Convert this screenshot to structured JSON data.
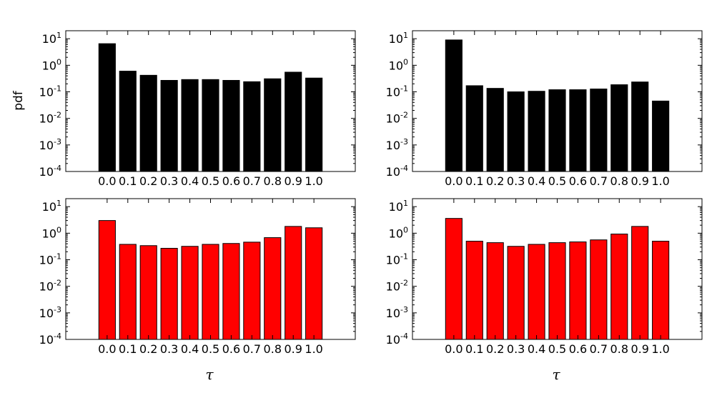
{
  "figure": {
    "ylabel": "pdf",
    "xlabel_symbol": "τ"
  },
  "chart_data": [
    {
      "type": "bar",
      "panel": "top-left",
      "yscale": "log",
      "ylim": [
        0.0001,
        20
      ],
      "color": "#000000",
      "categories": [
        "0.0",
        "0.1",
        "0.2",
        "0.3",
        "0.4",
        "0.5",
        "0.6",
        "0.7",
        "0.8",
        "0.9",
        "1.0"
      ],
      "values": [
        6.5,
        0.6,
        0.42,
        0.27,
        0.29,
        0.29,
        0.27,
        0.24,
        0.31,
        0.55,
        0.33
      ],
      "yticks": [
        {
          "base": "10",
          "exp": "1"
        },
        {
          "base": "10",
          "exp": "0"
        },
        {
          "base": "10",
          "exp": "-1"
        },
        {
          "base": "10",
          "exp": "-2"
        },
        {
          "base": "10",
          "exp": "-3"
        },
        {
          "base": "10",
          "exp": "-4"
        }
      ],
      "ylabel": "pdf",
      "xlabel": ""
    },
    {
      "type": "bar",
      "panel": "top-right",
      "yscale": "log",
      "ylim": [
        0.0001,
        20
      ],
      "color": "#000000",
      "categories": [
        "0.0",
        "0.1",
        "0.2",
        "0.3",
        "0.4",
        "0.5",
        "0.6",
        "0.7",
        "0.8",
        "0.9",
        "1.0"
      ],
      "values": [
        9.0,
        0.17,
        0.135,
        0.1,
        0.105,
        0.12,
        0.12,
        0.128,
        0.185,
        0.235,
        0.045
      ],
      "yticks": [
        {
          "base": "10",
          "exp": "1"
        },
        {
          "base": "10",
          "exp": "0"
        },
        {
          "base": "10",
          "exp": "-1"
        },
        {
          "base": "10",
          "exp": "-2"
        },
        {
          "base": "10",
          "exp": "-3"
        },
        {
          "base": "10",
          "exp": "-4"
        }
      ],
      "ylabel": "",
      "xlabel": ""
    },
    {
      "type": "bar",
      "panel": "bottom-left",
      "yscale": "log",
      "ylim": [
        0.0001,
        20
      ],
      "color": "#ff0000",
      "categories": [
        "0.0",
        "0.1",
        "0.2",
        "0.3",
        "0.4",
        "0.5",
        "0.6",
        "0.7",
        "0.8",
        "0.9",
        "1.0"
      ],
      "values": [
        3.0,
        0.38,
        0.34,
        0.27,
        0.32,
        0.38,
        0.41,
        0.46,
        0.68,
        1.8,
        1.6
      ],
      "yticks": [
        {
          "base": "10",
          "exp": "1"
        },
        {
          "base": "10",
          "exp": "0"
        },
        {
          "base": "10",
          "exp": "-1"
        },
        {
          "base": "10",
          "exp": "-2"
        },
        {
          "base": "10",
          "exp": "-3"
        },
        {
          "base": "10",
          "exp": "-4"
        }
      ],
      "ylabel": "",
      "xlabel": "τ"
    },
    {
      "type": "bar",
      "panel": "bottom-right",
      "yscale": "log",
      "ylim": [
        0.0001,
        20
      ],
      "color": "#ff0000",
      "categories": [
        "0.0",
        "0.1",
        "0.2",
        "0.3",
        "0.4",
        "0.5",
        "0.6",
        "0.7",
        "0.8",
        "0.9",
        "1.0"
      ],
      "values": [
        3.6,
        0.5,
        0.44,
        0.32,
        0.38,
        0.44,
        0.47,
        0.56,
        0.93,
        1.8,
        0.5
      ],
      "yticks": [
        {
          "base": "10",
          "exp": "1"
        },
        {
          "base": "10",
          "exp": "0"
        },
        {
          "base": "10",
          "exp": "-1"
        },
        {
          "base": "10",
          "exp": "-2"
        },
        {
          "base": "10",
          "exp": "-3"
        },
        {
          "base": "10",
          "exp": "-4"
        }
      ],
      "ylabel": "",
      "xlabel": "τ"
    }
  ]
}
